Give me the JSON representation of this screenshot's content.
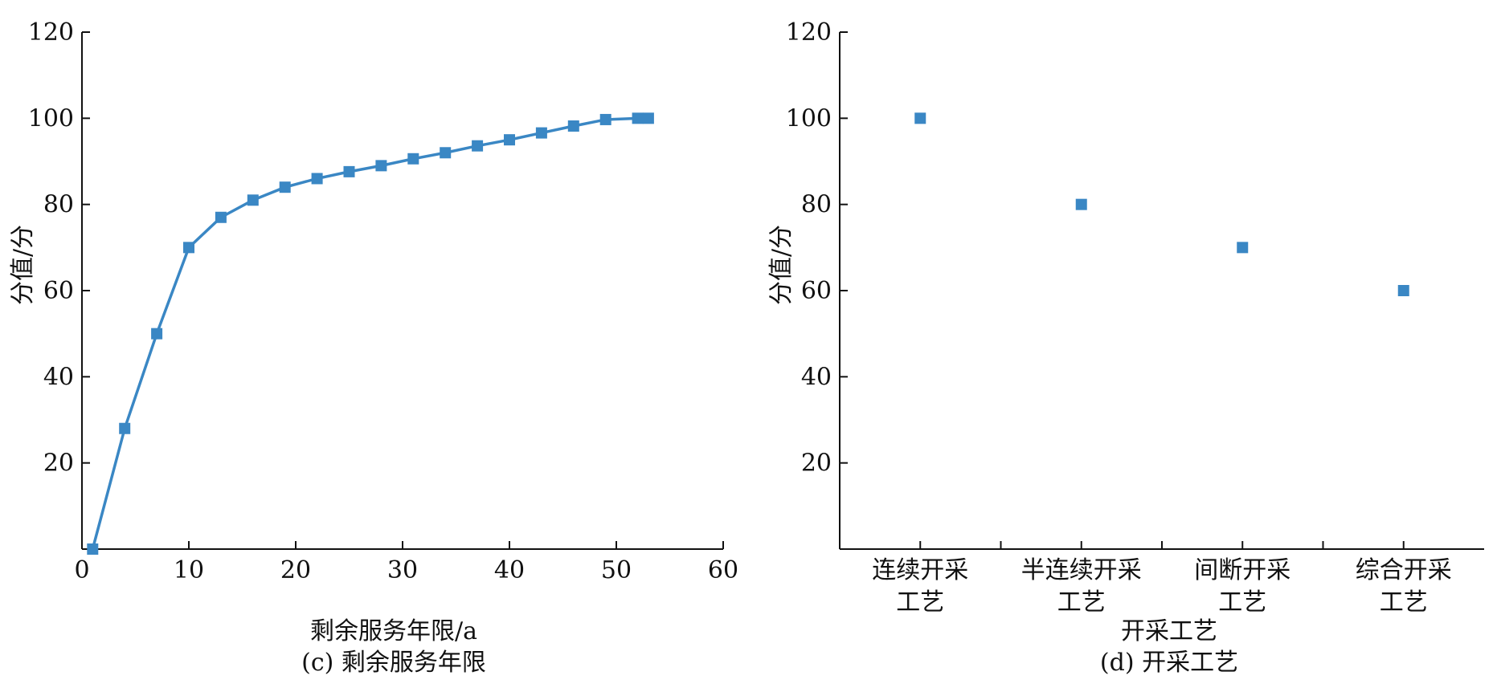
{
  "chart_data": [
    {
      "type": "line",
      "caption": "(c) 剩余服务年限",
      "xlabel": "剩余服务年限/a",
      "ylabel": "分值/分",
      "xlim": [
        0,
        60
      ],
      "ylim": [
        0,
        120
      ],
      "xticks": [
        "0",
        "10",
        "20",
        "30",
        "40",
        "50",
        "60"
      ],
      "yticks": [
        "20",
        "40",
        "60",
        "80",
        "100",
        "120"
      ],
      "color": "#3a87c4",
      "x": [
        1,
        4,
        7,
        10,
        13,
        16,
        19,
        22,
        25,
        28,
        31,
        34,
        37,
        40,
        43,
        46,
        49,
        52,
        53
      ],
      "y": [
        0,
        28,
        50,
        70,
        77,
        81,
        84,
        86,
        87.6,
        89,
        90.6,
        92,
        93.6,
        95,
        96.6,
        98.2,
        99.7,
        100,
        100
      ]
    },
    {
      "type": "scatter",
      "caption": "(d) 开采工艺",
      "xlabel": "开采工艺",
      "ylabel": "分值/分",
      "ylim": [
        0,
        120
      ],
      "yticks": [
        "20",
        "40",
        "60",
        "80",
        "100",
        "120"
      ],
      "color": "#3a87c4",
      "categories": [
        [
          "连续开采",
          "工艺"
        ],
        [
          "半连续开采",
          "工艺"
        ],
        [
          "间断开采",
          "工艺"
        ],
        [
          "综合开采",
          "工艺"
        ]
      ],
      "values": [
        100,
        80,
        70,
        60
      ]
    }
  ]
}
